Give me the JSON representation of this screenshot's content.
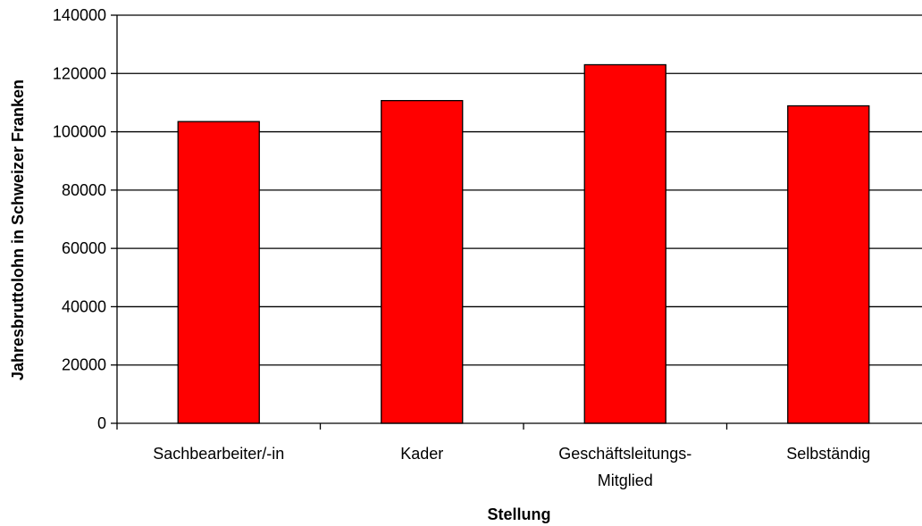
{
  "chart_data": {
    "type": "bar",
    "categories": [
      "Sachbearbeiter/-in",
      "Kader",
      "Geschäftsleitungs-Mitglied",
      "Selbständig"
    ],
    "category_label_lines": [
      [
        "Sachbearbeiter/-in"
      ],
      [
        "Kader"
      ],
      [
        "Geschäftsleitungs-",
        "Mitglied"
      ],
      [
        "Selbständig"
      ]
    ],
    "values": [
      103500,
      110700,
      123000,
      108900
    ],
    "xlabel": "Stellung",
    "ylabel": "Jahresbruttolohn in Schweizer Franken",
    "ylim": [
      0,
      140000
    ],
    "yticks": [
      0,
      20000,
      40000,
      60000,
      80000,
      100000,
      120000,
      140000
    ],
    "grid": true,
    "legend": "none",
    "colors": {
      "bar": "#ff0000",
      "bar_edge": "#000000",
      "grid": "#000000",
      "background": "#ffffff"
    }
  }
}
